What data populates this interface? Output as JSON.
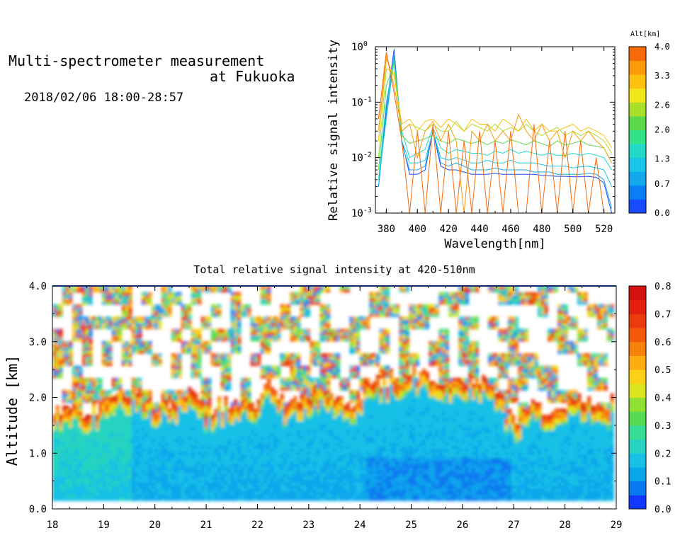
{
  "header": {
    "title_line1": "Multi-spectrometer measurement",
    "title_line2": "at Fukuoka",
    "date": "2018/02/06 18:00-28:57"
  },
  "colors": {
    "altitude_scale": [
      "#1a4bff",
      "#0a7ff5",
      "#13a7ec",
      "#19c6e8",
      "#22d9c7",
      "#33e38a",
      "#5ad84a",
      "#a9df28",
      "#f0e61a",
      "#fcc20f",
      "#fb9b0c",
      "#f66a0a"
    ],
    "intensity_scale": [
      "#1437ff",
      "#0a78f0",
      "#0aa6ec",
      "#19c0e6",
      "#25d3c0",
      "#38dd96",
      "#58da55",
      "#90e032",
      "#dbe61e",
      "#fbd015",
      "#fbac10",
      "#f7810b",
      "#f25a0a",
      "#ec3b0c",
      "#e3200d",
      "#d4110f"
    ]
  },
  "chart_data": [
    {
      "type": "line",
      "xlabel": "Wavelength[nm]",
      "ylabel": "Relative signal intensity",
      "y_scale": "log",
      "xlim": [
        373,
        527
      ],
      "ylim": [
        0.001,
        1
      ],
      "xticks": [
        "380",
        "400",
        "420",
        "440",
        "460",
        "480",
        "500",
        "520"
      ],
      "ytick_mantissa": [
        "10",
        "10",
        "10",
        "10"
      ],
      "ytick_exponent": [
        "-3",
        "-2",
        "-1",
        "0"
      ],
      "colorbar": {
        "label": "Alt[km]",
        "ticks": [
          "0.0",
          "0.7",
          "1.3",
          "2.0",
          "2.6",
          "3.3",
          "4.0"
        ],
        "range": [
          0,
          4
        ]
      },
      "x": [
        375,
        380,
        385,
        390,
        395,
        400,
        405,
        410,
        415,
        420,
        425,
        430,
        435,
        440,
        445,
        450,
        455,
        460,
        465,
        470,
        475,
        480,
        485,
        490,
        495,
        500,
        505,
        510,
        515,
        520,
        525
      ],
      "series": [
        {
          "alt": 0.3,
          "values": [
            0.003,
            0.08,
            0.9,
            0.02,
            0.005,
            0.005,
            0.006,
            0.03,
            0.007,
            0.006,
            0.006,
            0.0055,
            0.005,
            0.005,
            0.005,
            0.0052,
            0.005,
            0.005,
            0.005,
            0.005,
            0.005,
            0.0048,
            0.0047,
            0.0046,
            0.0046,
            0.0045,
            0.0045,
            0.0046,
            0.0044,
            0.0035,
            0.001
          ]
        },
        {
          "alt": 0.8,
          "values": [
            0.003,
            0.06,
            0.7,
            0.018,
            0.006,
            0.006,
            0.007,
            0.032,
            0.008,
            0.007,
            0.008,
            0.007,
            0.006,
            0.006,
            0.006,
            0.0065,
            0.006,
            0.006,
            0.006,
            0.006,
            0.0055,
            0.0055,
            0.0055,
            0.005,
            0.005,
            0.005,
            0.005,
            0.0052,
            0.005,
            0.004,
            0.0012
          ]
        },
        {
          "alt": 1.2,
          "values": [
            0.004,
            0.05,
            0.6,
            0.02,
            0.008,
            0.008,
            0.009,
            0.03,
            0.01,
            0.009,
            0.01,
            0.009,
            0.008,
            0.008,
            0.009,
            0.008,
            0.008,
            0.009,
            0.008,
            0.008,
            0.008,
            0.0075,
            0.007,
            0.007,
            0.007,
            0.0065,
            0.0068,
            0.007,
            0.0065,
            0.006,
            0.003
          ]
        },
        {
          "alt": 1.6,
          "values": [
            0.004,
            0.1,
            0.6,
            0.03,
            0.01,
            0.012,
            0.014,
            0.035,
            0.015,
            0.012,
            0.014,
            0.013,
            0.012,
            0.012,
            0.011,
            0.013,
            0.012,
            0.014,
            0.012,
            0.013,
            0.012,
            0.011,
            0.012,
            0.011,
            0.011,
            0.012,
            0.011,
            0.012,
            0.011,
            0.01,
            0.006
          ]
        },
        {
          "alt": 2.1,
          "values": [
            0.006,
            0.2,
            0.5,
            0.025,
            0.018,
            0.02,
            0.022,
            0.025,
            0.02,
            0.018,
            0.022,
            0.02,
            0.018,
            0.02,
            0.017,
            0.02,
            0.018,
            0.021,
            0.019,
            0.017,
            0.02,
            0.018,
            0.016,
            0.02,
            0.017,
            0.018,
            0.02,
            0.017,
            0.016,
            0.015,
            0.008
          ]
        },
        {
          "alt": 2.5,
          "values": [
            0.01,
            0.4,
            0.35,
            0.03,
            0.04,
            0.035,
            0.03,
            0.04,
            0.03,
            0.03,
            0.045,
            0.03,
            0.04,
            0.035,
            0.03,
            0.04,
            0.03,
            0.035,
            0.03,
            0.04,
            0.03,
            0.025,
            0.03,
            0.035,
            0.025,
            0.03,
            0.025,
            0.03,
            0.025,
            0.02,
            0.012
          ]
        },
        {
          "alt": 3.0,
          "values": [
            0.02,
            0.6,
            0.3,
            0.04,
            0.05,
            0.03,
            0.045,
            0.05,
            0.035,
            0.05,
            0.04,
            0.03,
            0.05,
            0.04,
            0.04,
            0.03,
            0.05,
            0.04,
            0.03,
            0.05,
            0.03,
            0.04,
            0.03,
            0.03,
            0.035,
            0.04,
            0.03,
            0.035,
            0.03,
            0.025,
            0.015
          ]
        },
        {
          "alt": 3.4,
          "values": [
            0.03,
            0.7,
            0.2,
            0.03,
            0.04,
            0.01,
            0.03,
            0.045,
            0.02,
            0.04,
            0.02,
            0.001,
            0.03,
            0.02,
            0.04,
            0.02,
            0.03,
            0.02,
            0.06,
            0.03,
            0.02,
            0.04,
            0.02,
            0.03,
            0.01,
            0.03,
            0.02,
            0.03,
            0.02,
            0.015,
            0.008
          ]
        },
        {
          "alt": 3.9,
          "values": [
            0.05,
            0.8,
            0.15,
            0.02,
            0.001,
            0.03,
            0.001,
            0.04,
            0.001,
            0.03,
            0.001,
            0.02,
            0.001,
            0.03,
            0.001,
            0.02,
            0.001,
            0.03,
            0.001,
            0.001,
            0.04,
            0.001,
            0.02,
            0.001,
            0.03,
            0.001,
            0.02,
            0.001,
            0.01,
            0.001,
            0.001
          ]
        }
      ]
    },
    {
      "type": "heatmap",
      "title": "Total relative signal intensity at 420-510nm",
      "xlabel": "",
      "ylabel": "Altitude [km]",
      "xlim": [
        18,
        29
      ],
      "ylim": [
        0,
        4
      ],
      "xticks": [
        "18",
        "19",
        "20",
        "21",
        "22",
        "23",
        "24",
        "25",
        "26",
        "27",
        "28",
        "29"
      ],
      "yticks": [
        "0.0",
        "1.0",
        "2.0",
        "3.0",
        "4.0"
      ],
      "colorbar": {
        "ticks": [
          "0.0",
          "0.1",
          "0.2",
          "0.3",
          "0.4",
          "0.5",
          "0.6",
          "0.7",
          "0.8"
        ],
        "range": [
          0,
          0.8
        ]
      },
      "data_time_range": [
        18.0,
        28.95
      ],
      "data_altitude_range": [
        0.15,
        4.0
      ],
      "cloud_base_profile": {
        "time": [
          18.0,
          18.3,
          18.6,
          19.0,
          19.4,
          19.8,
          20.2,
          20.6,
          21.0,
          21.4,
          21.8,
          22.2,
          22.6,
          23.0,
          23.4,
          23.8,
          24.2,
          24.6,
          25.0,
          25.4,
          25.8,
          26.2,
          26.6,
          27.0,
          27.4,
          27.8,
          28.2,
          28.6,
          28.95
        ],
        "altitude": [
          1.4,
          1.5,
          1.5,
          1.6,
          1.9,
          1.7,
          1.6,
          1.8,
          1.5,
          1.7,
          1.6,
          1.9,
          1.6,
          1.8,
          1.9,
          1.5,
          2.0,
          2.1,
          2.2,
          2.1,
          2.0,
          2.1,
          1.8,
          1.3,
          1.6,
          1.5,
          1.7,
          1.6,
          1.6
        ]
      }
    }
  ]
}
